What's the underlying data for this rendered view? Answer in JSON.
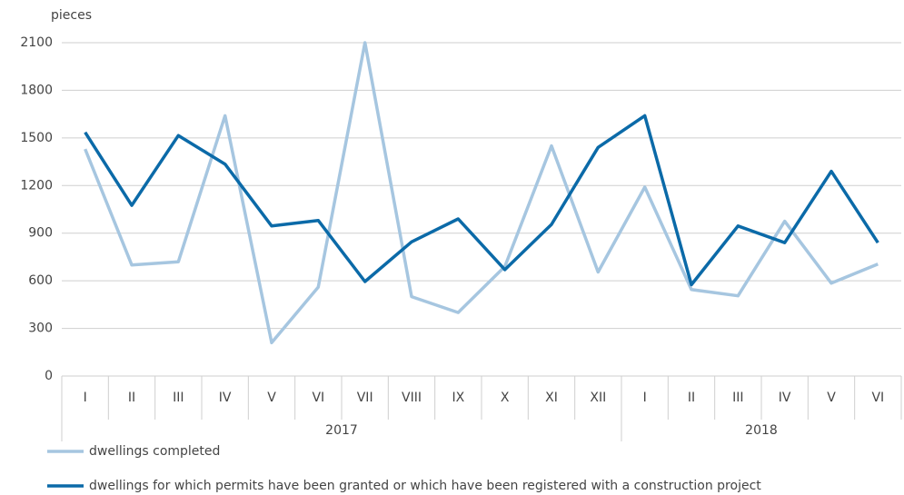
{
  "chart_data": {
    "type": "line",
    "y_label": "pieces",
    "categories": [
      "I",
      "II",
      "III",
      "IV",
      "V",
      "VI",
      "VII",
      "VIII",
      "IX",
      "X",
      "XI",
      "XII",
      "I",
      "II",
      "III",
      "IV",
      "V",
      "VI"
    ],
    "groups": [
      {
        "label": "2017",
        "span": 12
      },
      {
        "label": "2018",
        "span": 6
      }
    ],
    "series": [
      {
        "name": "dwellings completed",
        "color": "#a6c6e0",
        "values": [
          1430,
          700,
          720,
          1640,
          210,
          560,
          2100,
          500,
          400,
          690,
          1450,
          655,
          1190,
          545,
          505,
          975,
          585,
          705
        ]
      },
      {
        "name": "dwellings for which permits have been granted or which have been registered with a construction project",
        "color": "#0b6aa8",
        "values": [
          1535,
          1075,
          1515,
          1335,
          945,
          980,
          595,
          845,
          990,
          670,
          955,
          1440,
          1640,
          575,
          945,
          840,
          1290,
          840
        ]
      }
    ],
    "ylim": [
      0,
      2100
    ],
    "yticks": [
      0,
      300,
      600,
      900,
      1200,
      1500,
      1800,
      2100
    ],
    "grid": true
  }
}
